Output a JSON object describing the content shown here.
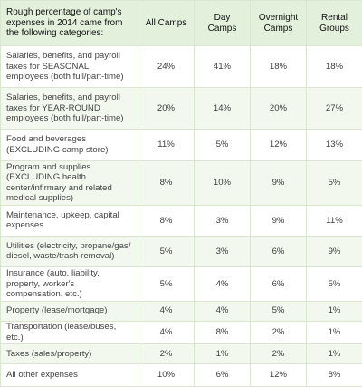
{
  "header": {
    "description": "Rough percentage of camp's expenses in 2014 came from the following categories:",
    "columns": [
      "All Camps",
      "Day Camps",
      "Overnight Camps",
      "Rental Groups"
    ]
  },
  "rows": [
    {
      "label": "Salaries, benefits, and payroll taxes for SEASONAL employees (both full/part-time)",
      "values": [
        "24%",
        "41%",
        "18%",
        "18%"
      ]
    },
    {
      "label": "Salaries, benefits, and payroll taxes for YEAR-ROUND employees (both full/part-time)",
      "values": [
        "20%",
        "14%",
        "20%",
        "27%"
      ]
    },
    {
      "label": "Food and beverages (EXCLUDING camp store)",
      "values": [
        "11%",
        "5%",
        "12%",
        "13%"
      ]
    },
    {
      "label": "Program and supplies (EXCLUDING health center/infirmary and related medical supplies)",
      "values": [
        "8%",
        "10%",
        "9%",
        "5%"
      ]
    },
    {
      "label": "Maintenance, upkeep, capital expenses",
      "values": [
        "8%",
        "3%",
        "9%",
        "11%"
      ]
    },
    {
      "label": "Utilities (electricity, propane/gas/ diesel, waste/trash removal)",
      "values": [
        "5%",
        "3%",
        "6%",
        "9%"
      ]
    },
    {
      "label": "Insurance (auto, liability, property, worker's compensation, etc.)",
      "values": [
        "5%",
        "4%",
        "6%",
        "5%"
      ]
    },
    {
      "label": "Property (lease/mortgage)",
      "values": [
        "4%",
        "4%",
        "5%",
        "1%"
      ]
    },
    {
      "label": "Transportation (lease/buses, etc.)",
      "values": [
        "4%",
        "8%",
        "2%",
        "1%"
      ]
    },
    {
      "label": "Taxes (sales/property)",
      "values": [
        "2%",
        "1%",
        "2%",
        "1%"
      ]
    },
    {
      "label": "All other expenses",
      "values": [
        "10%",
        "6%",
        "12%",
        "8%"
      ]
    }
  ]
}
